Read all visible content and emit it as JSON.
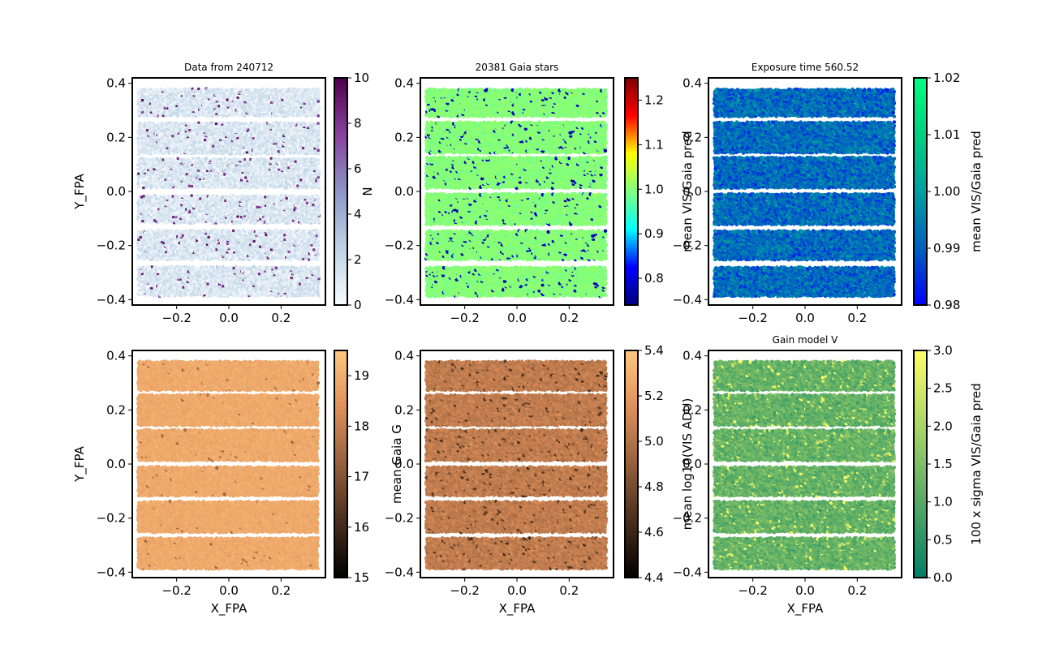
{
  "chart_data": [
    {
      "type": "scatter",
      "title": "Data from 240712",
      "xlabel": "",
      "ylabel": "Y_FPA",
      "cbar_label": "",
      "xlim": [
        -0.37,
        0.37
      ],
      "ylim": [
        -0.42,
        0.42
      ],
      "xticks": [
        "−0.2",
        "0.0",
        "0.2"
      ],
      "xtick_values": [
        -0.2,
        0.0,
        0.2
      ],
      "yticks": [
        "−0.4",
        "−0.2",
        "0.0",
        "0.2",
        "0.4"
      ],
      "ytick_values": [
        -0.4,
        -0.2,
        0.0,
        0.2,
        0.4
      ],
      "cbar_range": [
        0,
        10
      ],
      "cbar_ticks": [
        "0",
        "2",
        "4",
        "6",
        "8",
        "10"
      ],
      "cbar_tick_values": [
        0,
        2,
        4,
        6,
        8,
        10
      ],
      "colormap": [
        "#f7fcfd",
        "#bfd3e6",
        "#8c96c6",
        "#88419d",
        "#4d004b"
      ],
      "marker": "hexbin",
      "value_distribution": {
        "base": 1.4,
        "spread": 1.6,
        "outlier_rate": 0.04,
        "outlier_value": 8.5
      },
      "stripes_y": [
        [
          0.28,
          0.38
        ],
        [
          0.14,
          0.26
        ],
        [
          0.015,
          0.125
        ],
        [
          -0.115,
          -0.01
        ],
        [
          -0.25,
          -0.14
        ],
        [
          -0.385,
          -0.275
        ]
      ],
      "x_extent": [
        -0.345,
        0.345
      ]
    },
    {
      "type": "scatter",
      "title": "20381 Gaia stars",
      "xlabel": "",
      "ylabel": "N",
      "cbar_label": "mean VIS/Gaia pred",
      "xlim": [
        -0.37,
        0.37
      ],
      "ylim": [
        -0.42,
        0.42
      ],
      "xticks": [
        "−0.2",
        "0.0",
        "0.2"
      ],
      "xtick_values": [
        -0.2,
        0.0,
        0.2
      ],
      "yticks": [
        "−0.4",
        "−0.2",
        "0.0",
        "0.2",
        "0.4"
      ],
      "ytick_values": [
        -0.4,
        -0.2,
        0.0,
        0.2,
        0.4
      ],
      "cbar_range": [
        0.74,
        1.25
      ],
      "cbar_ticks": [
        "0.8",
        "0.9",
        "1.0",
        "1.1",
        "1.2"
      ],
      "cbar_tick_values": [
        0.8,
        0.9,
        1.0,
        1.1,
        1.2
      ],
      "colormap": [
        "#00007f",
        "#0000ff",
        "#00ffff",
        "#7fff7f",
        "#ffff00",
        "#ff0000",
        "#7f0000"
      ],
      "marker": "dot",
      "value_distribution": {
        "base": 1.0,
        "spread": 0.02,
        "outlier_rate": 0.05,
        "outlier_value": 0.78
      },
      "stripes_y": [
        [
          0.28,
          0.38
        ],
        [
          0.145,
          0.26
        ],
        [
          0.015,
          0.13
        ],
        [
          -0.12,
          -0.01
        ],
        [
          -0.25,
          -0.145
        ],
        [
          -0.385,
          -0.28
        ]
      ],
      "x_extent": [
        -0.345,
        0.345
      ]
    },
    {
      "type": "scatter",
      "title": "Exposure time 560.52",
      "xlabel": "",
      "ylabel": "",
      "cbar_label": "mean VIS/Gaia pred",
      "xlim": [
        -0.37,
        0.37
      ],
      "ylim": [
        -0.42,
        0.42
      ],
      "xticks": [
        "−0.2",
        "0.0",
        "0.2"
      ],
      "xtick_values": [
        -0.2,
        0.0,
        0.2
      ],
      "yticks": [
        "−0.4",
        "−0.2",
        "0.0",
        "0.2",
        "0.4"
      ],
      "ytick_values": [
        -0.4,
        -0.2,
        0.0,
        0.2,
        0.4
      ],
      "cbar_range": [
        0.98,
        1.02
      ],
      "cbar_ticks": [
        "0.98",
        "0.99",
        "1.00",
        "1.01",
        "1.02"
      ],
      "cbar_tick_values": [
        0.98,
        0.99,
        1.0,
        1.01,
        1.02
      ],
      "colormap": [
        "#0000ff",
        "#0060c0",
        "#00a0a0",
        "#00d080",
        "#00ff80"
      ],
      "marker": "dot",
      "value_distribution": {
        "base": 0.992,
        "spread": 0.012,
        "outlier_rate": 0.0,
        "outlier_value": 1.0
      },
      "stripes_y": [
        [
          0.28,
          0.38
        ],
        [
          0.145,
          0.26
        ],
        [
          0.015,
          0.13
        ],
        [
          -0.12,
          -0.01
        ],
        [
          -0.25,
          -0.145
        ],
        [
          -0.385,
          -0.28
        ]
      ],
      "x_extent": [
        -0.345,
        0.345
      ]
    },
    {
      "type": "scatter",
      "title": "",
      "xlabel": "X_FPA",
      "ylabel": "Y_FPA",
      "cbar_label": "mean Gaia G",
      "xlim": [
        -0.37,
        0.37
      ],
      "ylim": [
        -0.42,
        0.42
      ],
      "xticks": [
        "−0.2",
        "0.0",
        "0.2"
      ],
      "xtick_values": [
        -0.2,
        0.0,
        0.2
      ],
      "yticks": [
        "−0.4",
        "−0.2",
        "0.0",
        "0.2",
        "0.4"
      ],
      "ytick_values": [
        -0.4,
        -0.2,
        0.0,
        0.2,
        0.4
      ],
      "cbar_range": [
        15,
        19.5
      ],
      "cbar_ticks": [
        "15",
        "16",
        "17",
        "18",
        "19"
      ],
      "cbar_tick_values": [
        15,
        16,
        17,
        18,
        19
      ],
      "colormap": [
        "#000000",
        "#4a2e1d",
        "#94603c",
        "#df905b",
        "#ffc77f"
      ],
      "marker": "dot",
      "value_distribution": {
        "base": 18.9,
        "spread": 0.3,
        "outlier_rate": 0.01,
        "outlier_value": 17.5
      },
      "stripes_y": [
        [
          0.275,
          0.38
        ],
        [
          0.145,
          0.26
        ],
        [
          0.015,
          0.125
        ],
        [
          -0.115,
          -0.01
        ],
        [
          -0.25,
          -0.14
        ],
        [
          -0.385,
          -0.275
        ]
      ],
      "x_extent": [
        -0.345,
        0.345
      ]
    },
    {
      "type": "scatter",
      "title": "",
      "xlabel": "X_FPA",
      "ylabel": "",
      "cbar_label": "mean log10(VIS ADU)",
      "xlim": [
        -0.37,
        0.37
      ],
      "ylim": [
        -0.42,
        0.42
      ],
      "xticks": [
        "−0.2",
        "0.0",
        "0.2"
      ],
      "xtick_values": [
        -0.2,
        0.0,
        0.2
      ],
      "yticks": [
        "−0.4",
        "−0.2",
        "0.0",
        "0.2",
        "0.4"
      ],
      "ytick_values": [
        -0.4,
        -0.2,
        0.0,
        0.2,
        0.4
      ],
      "cbar_range": [
        4.4,
        5.4
      ],
      "cbar_ticks": [
        "4.4",
        "4.6",
        "4.8",
        "5.0",
        "5.2",
        "5.4"
      ],
      "cbar_tick_values": [
        4.4,
        4.6,
        4.8,
        5.0,
        5.2,
        5.4
      ],
      "colormap": [
        "#000000",
        "#4a2e1d",
        "#94603c",
        "#df905b",
        "#ffc77f"
      ],
      "marker": "dot",
      "value_distribution": {
        "base": 5.05,
        "spread": 0.12,
        "outlier_rate": 0.04,
        "outlier_value": 4.7
      },
      "stripes_y": [
        [
          0.275,
          0.38
        ],
        [
          0.145,
          0.26
        ],
        [
          0.015,
          0.125
        ],
        [
          -0.115,
          -0.01
        ],
        [
          -0.25,
          -0.14
        ],
        [
          -0.385,
          -0.275
        ]
      ],
      "x_extent": [
        -0.345,
        0.345
      ]
    },
    {
      "type": "scatter",
      "title": "Gain model V",
      "xlabel": "X_FPA",
      "ylabel": "",
      "cbar_label": "100 x sigma VIS/Gaia pred",
      "xlim": [
        -0.37,
        0.37
      ],
      "ylim": [
        -0.42,
        0.42
      ],
      "xticks": [
        "−0.2",
        "0.0",
        "0.2"
      ],
      "xtick_values": [
        -0.2,
        0.0,
        0.2
      ],
      "yticks": [
        "−0.4",
        "−0.2",
        "0.0",
        "0.2",
        "0.4"
      ],
      "ytick_values": [
        -0.4,
        -0.2,
        0.0,
        0.2,
        0.4
      ],
      "cbar_range": [
        0,
        3
      ],
      "cbar_ticks": [
        "0.0",
        "0.5",
        "1.0",
        "1.5",
        "2.0",
        "2.5",
        "3.0"
      ],
      "cbar_tick_values": [
        0,
        0.5,
        1.0,
        1.5,
        2.0,
        2.5,
        3.0
      ],
      "colormap": [
        "#008066",
        "#339966",
        "#66b266",
        "#99cc66",
        "#cce566",
        "#ffff66"
      ],
      "marker": "dot",
      "value_distribution": {
        "base": 1.2,
        "spread": 0.7,
        "outlier_rate": 0.05,
        "outlier_value": 2.8
      },
      "stripes_y": [
        [
          0.275,
          0.38
        ],
        [
          0.145,
          0.26
        ],
        [
          0.015,
          0.125
        ],
        [
          -0.115,
          -0.01
        ],
        [
          -0.25,
          -0.14
        ],
        [
          -0.385,
          -0.275
        ]
      ],
      "x_extent": [
        -0.345,
        0.345
      ]
    }
  ]
}
